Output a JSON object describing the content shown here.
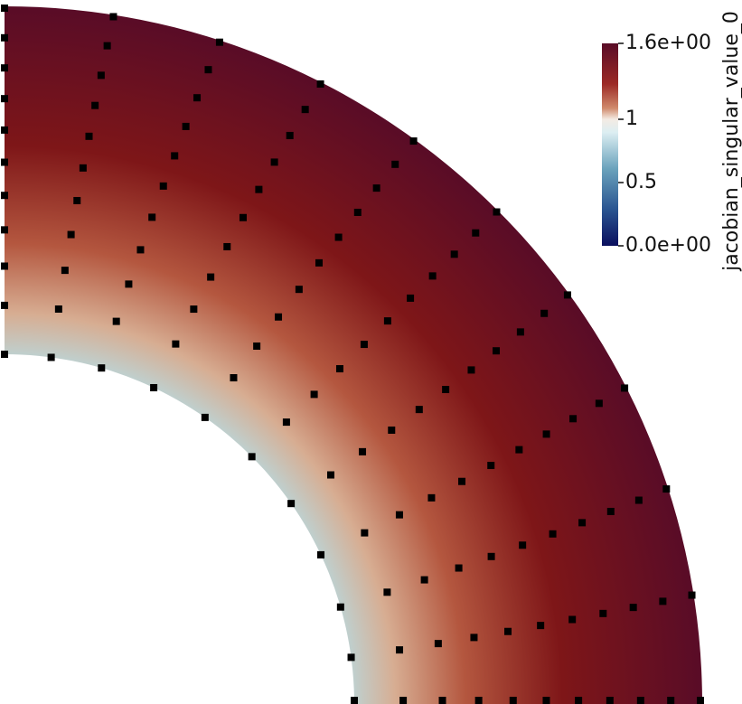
{
  "chart_data": {
    "type": "field",
    "colorbar_title": "jacobian_singular_value_0",
    "clim": [
      0,
      1.6
    ],
    "cticks": [
      {
        "value": 1.6,
        "label": "1.6e+00"
      },
      1,
      0.5,
      {
        "value": 0,
        "label": "0.0e+00"
      }
    ]
  }
}
